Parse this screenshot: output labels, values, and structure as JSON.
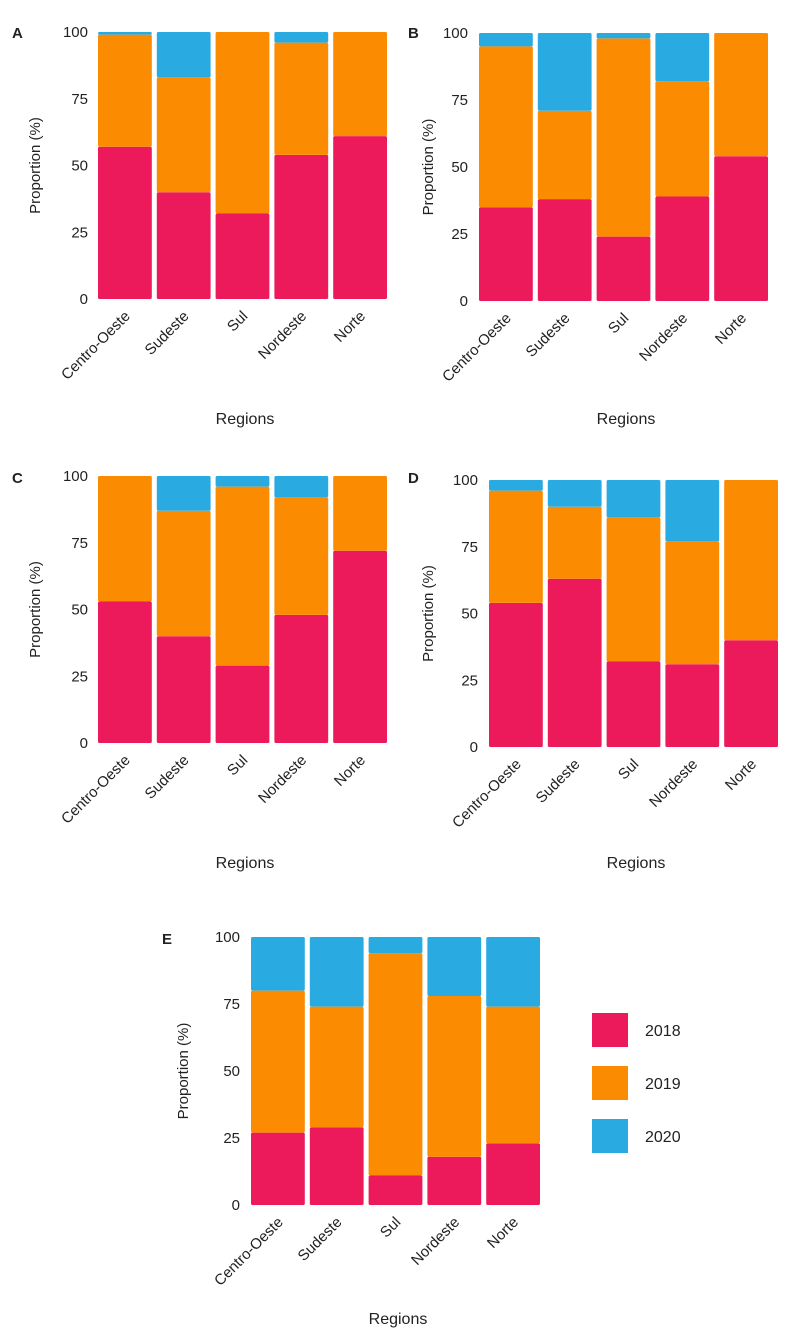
{
  "figure": {
    "legend": [
      {
        "label": "2018",
        "color": "#ED1A5B"
      },
      {
        "label": "2019",
        "color": "#FB8B00"
      },
      {
        "label": "2020",
        "color": "#29ABE2"
      }
    ]
  },
  "chart_data": [
    {
      "panel": "A",
      "type": "bar",
      "stacked": true,
      "categories": [
        "Centro-Oeste",
        "Sudeste",
        "Sul",
        "Nordeste",
        "Norte"
      ],
      "series": [
        {
          "name": "2018",
          "values": [
            57,
            40,
            32,
            54,
            61
          ]
        },
        {
          "name": "2019",
          "values": [
            42,
            43,
            68,
            42,
            39
          ]
        },
        {
          "name": "2020",
          "values": [
            1,
            17,
            0,
            4,
            0
          ]
        }
      ],
      "xlabel": "Regions",
      "ylabel": "Proportion (%)",
      "ylim": [
        0,
        100
      ],
      "yticks": [
        "0",
        "25",
        "50",
        "75",
        "100"
      ]
    },
    {
      "panel": "B",
      "type": "bar",
      "stacked": true,
      "categories": [
        "Centro-Oeste",
        "Sudeste",
        "Sul",
        "Nordeste",
        "Norte"
      ],
      "series": [
        {
          "name": "2018",
          "values": [
            35,
            38,
            24,
            39,
            54
          ]
        },
        {
          "name": "2019",
          "values": [
            60,
            33,
            74,
            43,
            46
          ]
        },
        {
          "name": "2020",
          "values": [
            5,
            29,
            2,
            18,
            0
          ]
        }
      ],
      "xlabel": "Regions",
      "ylabel": "Proportion (%)",
      "ylim": [
        0,
        100
      ],
      "yticks": [
        "0",
        "25",
        "50",
        "75",
        "100"
      ]
    },
    {
      "panel": "C",
      "type": "bar",
      "stacked": true,
      "categories": [
        "Centro-Oeste",
        "Sudeste",
        "Sul",
        "Nordeste",
        "Norte"
      ],
      "series": [
        {
          "name": "2018",
          "values": [
            53,
            40,
            29,
            48,
            72
          ]
        },
        {
          "name": "2019",
          "values": [
            47,
            47,
            67,
            44,
            28
          ]
        },
        {
          "name": "2020",
          "values": [
            0,
            13,
            4,
            8,
            0
          ]
        }
      ],
      "xlabel": "Regions",
      "ylabel": "Proportion (%)",
      "ylim": [
        0,
        100
      ],
      "yticks": [
        "0",
        "25",
        "50",
        "75",
        "100"
      ]
    },
    {
      "panel": "D",
      "type": "bar",
      "stacked": true,
      "categories": [
        "Centro-Oeste",
        "Sudeste",
        "Sul",
        "Nordeste",
        "Norte"
      ],
      "series": [
        {
          "name": "2018",
          "values": [
            54,
            63,
            32,
            31,
            40
          ]
        },
        {
          "name": "2019",
          "values": [
            42,
            27,
            54,
            46,
            60
          ]
        },
        {
          "name": "2020",
          "values": [
            4,
            10,
            14,
            23,
            0
          ]
        }
      ],
      "xlabel": "Regions",
      "ylabel": "Proportion (%)",
      "ylim": [
        0,
        100
      ],
      "yticks": [
        "0",
        "25",
        "50",
        "75",
        "100"
      ]
    },
    {
      "panel": "E",
      "type": "bar",
      "stacked": true,
      "categories": [
        "Centro-Oeste",
        "Sudeste",
        "Sul",
        "Nordeste",
        "Norte"
      ],
      "series": [
        {
          "name": "2018",
          "values": [
            27,
            29,
            11,
            18,
            23
          ]
        },
        {
          "name": "2019",
          "values": [
            53,
            45,
            83,
            60,
            51
          ]
        },
        {
          "name": "2020",
          "values": [
            20,
            26,
            6,
            22,
            26
          ]
        }
      ],
      "xlabel": "Regions",
      "ylabel": "Proportion (%)",
      "ylim": [
        0,
        100
      ],
      "yticks": [
        "0",
        "25",
        "50",
        "75",
        "100"
      ]
    }
  ]
}
